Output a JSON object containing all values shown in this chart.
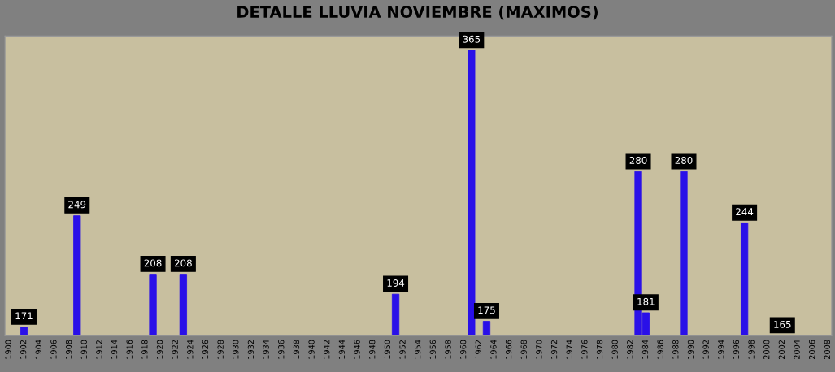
{
  "chart_data": {
    "type": "bar",
    "title": "DETALLE LLUVIA NOVIEMBRE (MAXIMOS)",
    "categories": [
      "1900",
      null,
      "1902",
      null,
      "1904",
      null,
      "1906",
      null,
      "1908",
      null,
      "1910",
      null,
      "1912",
      null,
      "1914",
      null,
      "1916",
      null,
      "1918",
      null,
      "1920",
      null,
      "1922",
      null,
      "1924",
      null,
      "1926",
      null,
      "1928",
      null,
      "1930",
      null,
      "1932",
      null,
      "1934",
      null,
      "1936",
      null,
      "1938",
      null,
      "1940",
      null,
      "1942",
      null,
      "1944",
      null,
      "1946",
      null,
      "1948",
      null,
      "1950",
      null,
      "1952",
      null,
      "1954",
      null,
      "1956",
      null,
      "1958",
      null,
      "1960",
      null,
      "1962",
      null,
      "1964",
      null,
      "1966",
      null,
      "1968",
      null,
      "1970",
      null,
      "1972",
      null,
      "1974",
      null,
      "1976",
      null,
      "1978",
      null,
      "1980",
      null,
      "1982",
      null,
      "1984",
      null,
      "1986",
      null,
      "1988",
      null,
      "1990",
      null,
      "1992",
      null,
      "1994",
      null,
      "1996",
      null,
      "1998",
      null,
      "2000",
      null,
      "2002",
      null,
      "2004",
      null,
      "2006",
      null,
      "2008"
    ],
    "values": [
      null,
      null,
      171,
      null,
      null,
      null,
      null,
      null,
      null,
      249,
      null,
      null,
      null,
      null,
      null,
      null,
      null,
      null,
      null,
      208,
      null,
      null,
      null,
      208,
      null,
      null,
      null,
      null,
      null,
      null,
      null,
      null,
      null,
      null,
      null,
      null,
      null,
      null,
      null,
      null,
      null,
      null,
      null,
      null,
      null,
      null,
      null,
      null,
      null,
      null,
      null,
      194,
      null,
      null,
      null,
      null,
      null,
      null,
      null,
      null,
      null,
      365,
      null,
      175,
      null,
      null,
      null,
      null,
      null,
      null,
      null,
      null,
      null,
      null,
      null,
      null,
      null,
      null,
      null,
      null,
      null,
      null,
      null,
      280,
      181,
      null,
      null,
      null,
      null,
      280,
      null,
      null,
      null,
      null,
      null,
      null,
      null,
      244,
      null,
      null,
      null,
      null,
      165,
      null,
      null,
      null,
      null,
      null,
      null
    ],
    "color": "#2a10e8",
    "ylim": [
      165,
      375
    ],
    "data_labels": true,
    "tick_labels": "x"
  }
}
